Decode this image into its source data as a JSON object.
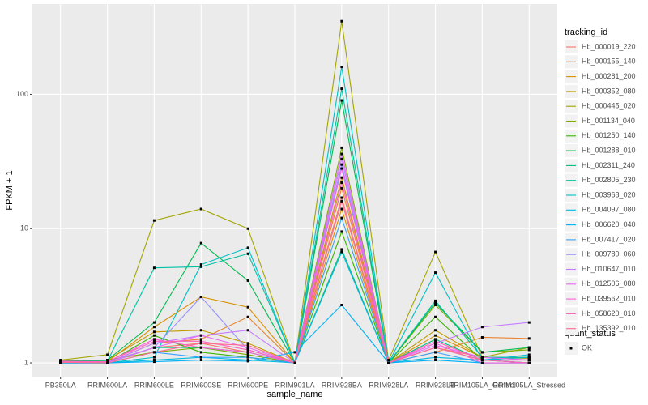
{
  "chart_data": {
    "type": "line",
    "log_y": true,
    "grid": true,
    "x_label": "sample_name",
    "y_label": "FPKM + 1",
    "legend_title": "tracking_id",
    "legend_position": "right",
    "point_legend_title": "quant_status",
    "point_legend_entry": "OK",
    "point_color": "#000000",
    "categories": [
      "PB350LA",
      "RRIM600LA",
      "RRIM600LE",
      "RRIM600SE",
      "RRIM600PE",
      "RRIM901LA",
      "RRIM928BA",
      "RRIM928LA",
      "RRIM928LB",
      "RRIM105LA_Control",
      "RRIM105LA_Stressed"
    ],
    "ylim": [
      0.79,
      470
    ],
    "yticks": [
      1,
      10,
      100
    ],
    "series": [
      {
        "name": "Hb_000019_220",
        "color": "#F8766D",
        "values": [
          1.02,
          1.0,
          1.3,
          1.4,
          1.2,
          1.0,
          17,
          1.0,
          1.3,
          1.1,
          1.05
        ]
      },
      {
        "name": "Hb_000155_140",
        "color": "#EA8331",
        "values": [
          1.03,
          1.0,
          1.4,
          1.5,
          2.2,
          1.0,
          20,
          1.0,
          1.2,
          1.55,
          1.52
        ]
      },
      {
        "name": "Hb_000281_200",
        "color": "#D89000",
        "values": [
          1.02,
          1.02,
          1.85,
          3.1,
          2.6,
          1.0,
          14,
          1.0,
          1.6,
          1.1,
          1.1
        ]
      },
      {
        "name": "Hb_000352_080",
        "color": "#C09B00",
        "values": [
          1.04,
          1.05,
          1.7,
          1.75,
          1.4,
          1.0,
          24,
          1.0,
          1.75,
          1.1,
          1.08
        ]
      },
      {
        "name": "Hb_000445_020",
        "color": "#A3A500",
        "values": [
          1.05,
          1.15,
          11.5,
          14,
          10,
          1.0,
          350,
          1.05,
          6.7,
          1.1,
          1.3
        ]
      },
      {
        "name": "Hb_001134_040",
        "color": "#7CAE00",
        "values": [
          1.02,
          1.05,
          1.2,
          1.3,
          1.15,
          1.0,
          40,
          1.0,
          2.7,
          1.2,
          1.25
        ]
      },
      {
        "name": "Hb_001250_140",
        "color": "#39B600",
        "values": [
          1.0,
          1.0,
          1.6,
          1.2,
          1.1,
          1.0,
          9.5,
          1.0,
          2.2,
          1.05,
          1.0
        ]
      },
      {
        "name": "Hb_001288_010",
        "color": "#00BB4E",
        "values": [
          1.03,
          1.05,
          2.0,
          7.8,
          4.1,
          1.0,
          90,
          1.0,
          2.8,
          1.2,
          1.3
        ]
      },
      {
        "name": "Hb_002311_240",
        "color": "#00BF7D",
        "values": [
          1.0,
          1.0,
          1.3,
          1.3,
          1.2,
          1.0,
          7,
          1.0,
          1.5,
          1.05,
          1.0
        ]
      },
      {
        "name": "Hb_002805_230",
        "color": "#00C1A3",
        "values": [
          1.02,
          1.03,
          5.1,
          5.2,
          6.5,
          1.0,
          110,
          1.0,
          2.9,
          1.1,
          1.1
        ]
      },
      {
        "name": "Hb_003968_020",
        "color": "#00BFC4",
        "values": [
          1.0,
          1.0,
          1.1,
          5.4,
          7.2,
          1.0,
          160,
          1.0,
          4.7,
          1.05,
          1.1
        ]
      },
      {
        "name": "Hb_004097_080",
        "color": "#00BAE0",
        "values": [
          1.0,
          1.0,
          1.05,
          1.1,
          1.05,
          1.0,
          6.7,
          1.0,
          1.1,
          1.05,
          1.15
        ]
      },
      {
        "name": "Hb_006620_040",
        "color": "#00B0F6",
        "values": [
          1.01,
          1.0,
          1.02,
          1.05,
          1.03,
          1.2,
          2.7,
          1.0,
          1.05,
          1.0,
          1.0
        ]
      },
      {
        "name": "Hb_007417_020",
        "color": "#35A2FF",
        "values": [
          1.0,
          1.0,
          1.2,
          1.1,
          1.1,
          1.0,
          12,
          1.0,
          1.2,
          1.0,
          1.0
        ]
      },
      {
        "name": "Hb_009780_060",
        "color": "#9590FF",
        "values": [
          1.02,
          1.02,
          1.3,
          3.1,
          1.25,
          1.0,
          30,
          1.0,
          1.3,
          1.05,
          1.05
        ]
      },
      {
        "name": "Hb_010647_010",
        "color": "#C77CFF",
        "values": [
          1.01,
          1.0,
          1.4,
          1.6,
          1.75,
          1.0,
          33,
          1.0,
          1.4,
          1.85,
          2.0
        ]
      },
      {
        "name": "Hb_012506_080",
        "color": "#E76BF3",
        "values": [
          1.02,
          1.0,
          1.3,
          1.6,
          1.3,
          1.0,
          36,
          1.0,
          1.35,
          1.1,
          1.05
        ]
      },
      {
        "name": "Hb_039562_010",
        "color": "#FA62DB",
        "values": [
          1.03,
          1.02,
          1.5,
          1.3,
          1.2,
          1.0,
          28,
          1.0,
          1.4,
          1.0,
          1.0
        ]
      },
      {
        "name": "Hb_058620_010",
        "color": "#FF62BC",
        "values": [
          1.02,
          1.02,
          1.45,
          1.45,
          1.25,
          1.0,
          22,
          1.0,
          1.45,
          1.05,
          1.0
        ]
      },
      {
        "name": "Hb_135392_010",
        "color": "#FF6C91",
        "values": [
          1.01,
          1.0,
          1.2,
          1.4,
          1.35,
          1.0,
          16,
          1.0,
          1.3,
          1.05,
          1.05
        ]
      }
    ]
  }
}
